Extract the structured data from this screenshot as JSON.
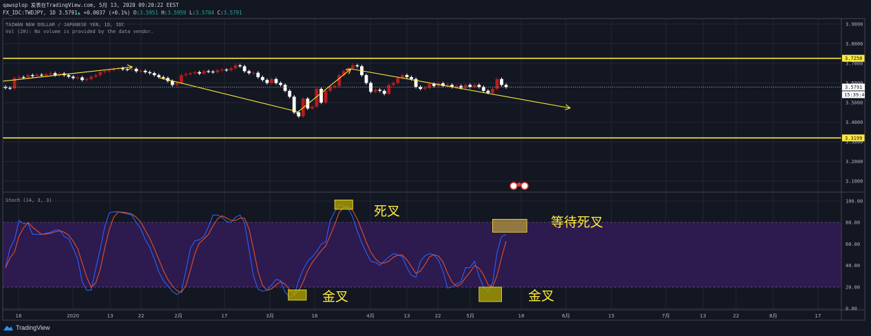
{
  "header": {
    "line1": "qawsplop 发表在TradingView.com, 5月 13, 2020 09:20:22 EEST",
    "symbol": "FX_IDC:TWDJPY, 1D 3.5791",
    "change": "+0.0037 (+0.1%)",
    "o_label": "O:",
    "o": "3.5951",
    "h_label": "H:",
    "h": "3.5959",
    "l_label": "L:",
    "l": "3.5704",
    "c_label": "C:",
    "c": "3.5791"
  },
  "pane_title": "TAIWAN NEW DOLLAR / JAPANESE YEN, 1D, IDC",
  "volume_note": "Vol (20): No volume is provided by the data vendor.",
  "stoch_title": "Stoch (14, 3, 3)",
  "brand": "TradingView",
  "colors": {
    "background": "#131722",
    "up": "#b71c1c",
    "down": "#ffffff",
    "drawing": "#ffeb3b",
    "stoch_k": "#2962ff",
    "stoch_d": "#e0522a",
    "band": "#2d1a4f"
  },
  "chart_data": [
    {
      "type": "candlestick",
      "ylim": [
        3.06,
        3.94
      ],
      "price_ticks": [
        "3.9000",
        "3.8000",
        "3.7000",
        "3.6000",
        "3.5000",
        "3.4000",
        "3.3000",
        "3.2000",
        "3.1000"
      ],
      "x_ticks": [
        "16",
        "2020",
        "13",
        "22",
        "2月",
        "17",
        "3月",
        "16",
        "4月",
        "13",
        "22",
        "5月",
        "18",
        "6月",
        "15",
        "7月",
        "13",
        "22",
        "8月",
        "17"
      ],
      "last_price": "3.5791",
      "countdown": "15:39:41",
      "horizontal_levels": [
        "3.7258",
        "3.3199"
      ],
      "trend_lines": [
        {
          "from": [
            -0.6,
            3.609
          ],
          "to": [
            28.1,
            3.682
          ],
          "arrow": true
        },
        {
          "from": [
            34.2,
            3.626
          ],
          "to": [
            64.7,
            3.454
          ],
          "arrow": false
        },
        {
          "from": [
            64.4,
            3.444
          ],
          "to": [
            76.6,
            3.672
          ],
          "arrow": true
        },
        {
          "from": [
            76.6,
            3.672
          ],
          "to": [
            125.2,
            3.472
          ],
          "arrow": true
        }
      ],
      "close": [
        3.575,
        3.572,
        3.625,
        3.63,
        3.628,
        3.64,
        3.635,
        3.642,
        3.638,
        3.645,
        3.65,
        3.64,
        3.648,
        3.64,
        3.632,
        3.625,
        3.628,
        3.615,
        3.62,
        3.632,
        3.64,
        3.655,
        3.66,
        3.665,
        3.672,
        3.675,
        3.67,
        3.668,
        3.672,
        3.66,
        3.662,
        3.655,
        3.65,
        3.64,
        3.63,
        3.625,
        3.61,
        3.59,
        3.6,
        3.64,
        3.645,
        3.65,
        3.655,
        3.648,
        3.66,
        3.658,
        3.655,
        3.665,
        3.668,
        3.665,
        3.675,
        3.69,
        3.685,
        3.66,
        3.65,
        3.652,
        3.63,
        3.615,
        3.6,
        3.62,
        3.6,
        3.59,
        3.56,
        3.53,
        3.45,
        3.43,
        3.52,
        3.47,
        3.48,
        3.57,
        3.5,
        3.56,
        3.58,
        3.585,
        3.64,
        3.66,
        3.675,
        3.69,
        3.685,
        3.64,
        3.6,
        3.555,
        3.565,
        3.56,
        3.545,
        3.59,
        3.6,
        3.625,
        3.64,
        3.63,
        3.62,
        3.58,
        3.57,
        3.575,
        3.595,
        3.585,
        3.598,
        3.585,
        3.59,
        3.58,
        3.585,
        3.575,
        3.59,
        3.58,
        3.59,
        3.58,
        3.56,
        3.55,
        3.57,
        3.62,
        3.59,
        3.579
      ]
    },
    {
      "type": "line",
      "title": "Stoch (14, 3, 3)",
      "ylim": [
        0,
        100
      ],
      "y_ticks": [
        "100.00",
        "80.00",
        "60.00",
        "40.00",
        "20.00",
        "0.00"
      ],
      "band": [
        20,
        80
      ],
      "series": [
        {
          "key": "k",
          "values": [
            38,
            56,
            64,
            82,
            79,
            79,
            69,
            69,
            69,
            70,
            71,
            73,
            73,
            67,
            65,
            56,
            46,
            25,
            17,
            17,
            37,
            55,
            76,
            89,
            90,
            90,
            89,
            88,
            87,
            80,
            74,
            64,
            57,
            46,
            34,
            26,
            21,
            16,
            13,
            16,
            35,
            56,
            63,
            64,
            67,
            76,
            87,
            87,
            85,
            81,
            80,
            85,
            87,
            80,
            55,
            30,
            18,
            16,
            17,
            22,
            27,
            26,
            15,
            11,
            12,
            26,
            36,
            44,
            48,
            53,
            60,
            62,
            82,
            90,
            97,
            95,
            93,
            85,
            72,
            61,
            52,
            44,
            43,
            40,
            44,
            48,
            51,
            50,
            48,
            38,
            31,
            29,
            44,
            49,
            51,
            50,
            45,
            35,
            19,
            20,
            23,
            25,
            38,
            38,
            44,
            30,
            20,
            16,
            24,
            52,
            67,
            69
          ]
        },
        {
          "key": "d",
          "values": [
            38,
            47,
            52.7,
            67.3,
            75,
            80,
            75.7,
            72.3,
            69,
            69.3,
            70,
            71.3,
            72.3,
            71,
            68.3,
            62.7,
            55.7,
            42.3,
            29.3,
            19.7,
            23.7,
            36.3,
            56,
            73.3,
            85,
            89.7,
            89.7,
            89,
            88,
            85,
            80.3,
            72.7,
            65,
            55.7,
            45.7,
            35.3,
            27,
            21,
            16.7,
            15,
            21.3,
            35.7,
            51.3,
            61,
            64.7,
            69,
            76.7,
            83.3,
            86.3,
            84.3,
            82,
            82,
            84,
            84,
            74,
            55,
            34.3,
            21.3,
            17,
            18.3,
            22,
            25,
            22.7,
            17.3,
            12.7,
            16.3,
            24.7,
            35.3,
            42.7,
            48.3,
            53.7,
            58.3,
            68,
            78,
            89.7,
            94,
            95,
            91,
            83.3,
            72.7,
            61.7,
            52.3,
            46.3,
            42.3,
            42.3,
            44,
            47.7,
            49.7,
            49.7,
            45.3,
            39,
            32.7,
            34.7,
            40.7,
            48,
            50,
            48.7,
            43.3,
            33,
            24.7,
            20.7,
            22.7,
            28.7,
            33.7,
            40,
            37.3,
            31.3,
            22,
            20,
            30.7,
            47.7,
            62.7
          ]
        }
      ],
      "highlight_boxes": [
        {
          "bars": [
            73,
            77
          ],
          "values": [
            92.3,
            101
          ]
        },
        {
          "bars": [
            62.7,
            66.7
          ],
          "values": [
            7.7,
            17.3
          ]
        },
        {
          "bars": [
            108,
            115.6
          ],
          "values": [
            71,
            83
          ]
        },
        {
          "bars": [
            105,
            110
          ],
          "values": [
            6.4,
            19.9
          ]
        }
      ],
      "annotations": [
        "死叉",
        "等待死叉",
        "金叉",
        "金叉"
      ]
    }
  ]
}
